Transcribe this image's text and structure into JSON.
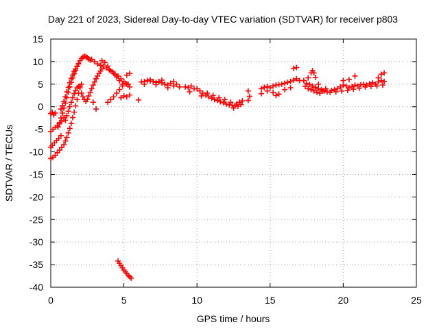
{
  "chart_data": {
    "type": "scatter",
    "title": "Day 221 of 2023, Sidereal Day-to-day VTEC variation (SDTVAR) for receiver p803",
    "xlabel": "GPS time / hours",
    "ylabel": "SDTVAR / TECUs",
    "xlim": [
      0,
      25
    ],
    "ylim": [
      -40,
      15
    ],
    "xticks": [
      0,
      5,
      10,
      15,
      20,
      25
    ],
    "yticks": [
      15,
      10,
      5,
      0,
      -5,
      -10,
      -15,
      -20,
      -25,
      -30,
      -35,
      -40
    ],
    "grid": true,
    "marker": "+",
    "color": "#ff0000",
    "series": [
      {
        "name": "SDTVAR",
        "points": [
          [
            0.0,
            -1.5
          ],
          [
            0.1,
            -1.2
          ],
          [
            0.2,
            -1.8
          ],
          [
            0.3,
            -1.4
          ],
          [
            0.0,
            -5.5
          ],
          [
            0.15,
            -5.0
          ],
          [
            0.3,
            -4.6
          ],
          [
            0.45,
            -4.2
          ],
          [
            0.6,
            -3.8
          ],
          [
            0.75,
            -3.2
          ],
          [
            0.9,
            -2.4
          ],
          [
            0.0,
            -9.0
          ],
          [
            0.1,
            -8.6
          ],
          [
            0.25,
            -8.0
          ],
          [
            0.4,
            -7.5
          ],
          [
            0.55,
            -7.0
          ],
          [
            0.7,
            -6.4
          ],
          [
            0.0,
            -11.5
          ],
          [
            0.15,
            -11.2
          ],
          [
            0.3,
            -10.8
          ],
          [
            0.45,
            -10.2
          ],
          [
            0.6,
            -9.6
          ],
          [
            0.75,
            -9.0
          ],
          [
            0.9,
            -8.4
          ],
          [
            1.0,
            -7.6
          ],
          [
            1.1,
            -6.8
          ],
          [
            1.2,
            -5.8
          ],
          [
            1.3,
            -4.8
          ],
          [
            1.4,
            -3.7
          ],
          [
            1.5,
            -2.4
          ],
          [
            1.6,
            -1.2
          ],
          [
            1.7,
            0.2
          ],
          [
            1.8,
            1.6
          ],
          [
            1.9,
            3.0
          ],
          [
            2.0,
            4.2
          ],
          [
            2.1,
            5.0
          ],
          [
            0.5,
            -4.5
          ],
          [
            0.6,
            -3.5
          ],
          [
            0.7,
            -2.5
          ],
          [
            0.8,
            -1.4
          ],
          [
            0.9,
            -0.3
          ],
          [
            1.0,
            0.8
          ],
          [
            1.1,
            2.0
          ],
          [
            1.2,
            3.2
          ],
          [
            1.3,
            4.4
          ],
          [
            1.4,
            5.4
          ],
          [
            1.5,
            6.4
          ],
          [
            1.6,
            7.3
          ],
          [
            1.7,
            8.1
          ],
          [
            1.8,
            8.9
          ],
          [
            1.9,
            9.6
          ],
          [
            2.0,
            10.2
          ],
          [
            2.1,
            10.7
          ],
          [
            2.2,
            11.0
          ],
          [
            2.3,
            11.2
          ],
          [
            2.4,
            11.1
          ],
          [
            2.5,
            10.9
          ],
          [
            2.6,
            10.6
          ],
          [
            2.7,
            10.3
          ],
          [
            0.7,
            -0.5
          ],
          [
            0.8,
            0.3
          ],
          [
            0.9,
            1.2
          ],
          [
            1.0,
            2.2
          ],
          [
            1.1,
            3.3
          ],
          [
            1.2,
            4.3
          ],
          [
            1.3,
            5.3
          ],
          [
            1.4,
            6.2
          ],
          [
            1.5,
            7.0
          ],
          [
            1.6,
            7.8
          ],
          [
            1.7,
            8.4
          ],
          [
            1.8,
            9.0
          ],
          [
            1.9,
            9.5
          ],
          [
            1.0,
            -3.0
          ],
          [
            1.1,
            -2.0
          ],
          [
            1.2,
            -1.0
          ],
          [
            1.3,
            0.0
          ],
          [
            1.4,
            1.0
          ],
          [
            1.5,
            2.0
          ],
          [
            1.6,
            2.9
          ],
          [
            1.7,
            3.6
          ],
          [
            1.8,
            4.2
          ],
          [
            1.9,
            4.5
          ],
          [
            2.0,
            4.6
          ],
          [
            2.1,
            3.0
          ],
          [
            2.2,
            2.2
          ],
          [
            2.3,
            1.6
          ],
          [
            2.4,
            1.2
          ],
          [
            2.5,
            1.6
          ],
          [
            2.6,
            2.4
          ],
          [
            2.7,
            3.2
          ],
          [
            2.8,
            4.0
          ],
          [
            2.9,
            4.8
          ],
          [
            3.0,
            5.5
          ],
          [
            3.1,
            6.2
          ],
          [
            3.2,
            6.8
          ],
          [
            3.3,
            7.4
          ],
          [
            3.4,
            7.9
          ],
          [
            3.5,
            8.4
          ],
          [
            2.9,
            1.0
          ],
          [
            3.1,
            -0.5
          ],
          [
            2.8,
            10.5
          ],
          [
            3.0,
            10.0
          ],
          [
            3.2,
            9.5
          ],
          [
            3.4,
            9.2
          ],
          [
            3.6,
            9.0
          ],
          [
            3.8,
            8.6
          ],
          [
            4.0,
            8.2
          ],
          [
            4.2,
            7.8
          ],
          [
            4.4,
            7.2
          ],
          [
            4.6,
            6.8
          ],
          [
            4.8,
            6.2
          ],
          [
            5.0,
            5.6
          ],
          [
            5.2,
            5.0
          ],
          [
            5.4,
            4.4
          ],
          [
            3.5,
            10.2
          ],
          [
            3.7,
            9.8
          ],
          [
            3.9,
            9.0
          ],
          [
            4.1,
            8.0
          ],
          [
            4.3,
            7.4
          ],
          [
            4.5,
            6.6
          ],
          [
            4.7,
            5.8
          ],
          [
            4.9,
            5.0
          ],
          [
            3.9,
            1.0
          ],
          [
            4.1,
            1.6
          ],
          [
            4.3,
            2.2
          ],
          [
            4.5,
            3.0
          ],
          [
            4.7,
            3.8
          ],
          [
            4.9,
            4.6
          ],
          [
            5.1,
            5.2
          ],
          [
            5.3,
            5.0
          ],
          [
            4.8,
            2.0
          ],
          [
            5.0,
            2.4
          ],
          [
            5.2,
            2.2
          ],
          [
            5.4,
            2.6
          ],
          [
            5.2,
            7.0
          ],
          [
            5.4,
            7.4
          ],
          [
            6.0,
            1.5
          ],
          [
            6.2,
            5.5
          ],
          [
            6.4,
            5.6
          ],
          [
            6.6,
            5.8
          ],
          [
            6.8,
            5.7
          ],
          [
            7.0,
            5.6
          ],
          [
            7.2,
            5.4
          ],
          [
            7.4,
            5.6
          ],
          [
            7.6,
            5.3
          ],
          [
            7.8,
            5.0
          ],
          [
            8.0,
            4.8
          ],
          [
            8.2,
            5.2
          ],
          [
            8.4,
            4.6
          ],
          [
            8.6,
            5.0
          ],
          [
            8.8,
            4.4
          ],
          [
            6.4,
            5.0
          ],
          [
            6.8,
            6.0
          ],
          [
            7.2,
            4.9
          ],
          [
            7.6,
            5.9
          ],
          [
            8.0,
            4.2
          ],
          [
            8.4,
            5.6
          ],
          [
            9.2,
            4.4
          ],
          [
            9.4,
            4.2
          ],
          [
            9.6,
            4.6
          ],
          [
            9.8,
            4.0
          ],
          [
            9.5,
            3.3
          ],
          [
            10.0,
            4.0
          ],
          [
            10.2,
            3.5
          ],
          [
            10.4,
            3.0
          ],
          [
            10.6,
            2.6
          ],
          [
            10.8,
            2.2
          ],
          [
            11.0,
            1.9
          ],
          [
            11.2,
            1.6
          ],
          [
            11.4,
            1.4
          ],
          [
            11.6,
            1.1
          ],
          [
            11.8,
            0.9
          ],
          [
            12.0,
            0.6
          ],
          [
            12.2,
            0.4
          ],
          [
            12.4,
            0.3
          ],
          [
            12.6,
            0.2
          ],
          [
            12.8,
            0.1
          ],
          [
            13.0,
            0.5
          ],
          [
            10.3,
            2.4
          ],
          [
            10.7,
            3.0
          ],
          [
            11.1,
            2.5
          ],
          [
            11.5,
            2.0
          ],
          [
            11.9,
            1.6
          ],
          [
            12.3,
            1.0
          ],
          [
            12.7,
            0.6
          ],
          [
            12.5,
            -0.3
          ],
          [
            12.9,
            1.0
          ],
          [
            13.1,
            1.3
          ],
          [
            13.5,
            1.4
          ],
          [
            13.6,
            2.3
          ],
          [
            13.5,
            3.5
          ],
          [
            14.4,
            4.0
          ],
          [
            14.6,
            4.3
          ],
          [
            14.8,
            4.5
          ],
          [
            15.0,
            4.2
          ],
          [
            15.2,
            4.6
          ],
          [
            15.4,
            4.8
          ],
          [
            15.6,
            4.9
          ],
          [
            15.8,
            5.0
          ],
          [
            16.0,
            5.2
          ],
          [
            16.2,
            5.4
          ],
          [
            16.4,
            5.6
          ],
          [
            16.6,
            5.9
          ],
          [
            16.8,
            6.2
          ],
          [
            17.0,
            5.8
          ],
          [
            14.4,
            2.9
          ],
          [
            14.8,
            3.5
          ],
          [
            15.2,
            3.2
          ],
          [
            15.4,
            2.5
          ],
          [
            15.6,
            2.8
          ],
          [
            16.0,
            3.8
          ],
          [
            16.4,
            4.2
          ],
          [
            16.6,
            8.5
          ],
          [
            16.8,
            8.7
          ],
          [
            17.3,
            5.8
          ],
          [
            17.5,
            5.2
          ],
          [
            17.7,
            4.9
          ],
          [
            17.9,
            4.6
          ],
          [
            18.1,
            4.3
          ],
          [
            18.3,
            4.0
          ],
          [
            18.5,
            3.8
          ],
          [
            18.7,
            3.5
          ],
          [
            18.9,
            3.3
          ],
          [
            19.1,
            3.2
          ],
          [
            17.4,
            4.5
          ],
          [
            17.6,
            4.0
          ],
          [
            17.8,
            3.8
          ],
          [
            18.0,
            3.5
          ],
          [
            18.2,
            3.2
          ],
          [
            18.4,
            3.0
          ],
          [
            18.6,
            3.5
          ],
          [
            18.8,
            4.0
          ],
          [
            17.6,
            6.4
          ],
          [
            17.8,
            7.5
          ],
          [
            17.9,
            8.0
          ],
          [
            18.0,
            7.5
          ],
          [
            18.1,
            6.5
          ],
          [
            18.3,
            5.0
          ],
          [
            19.2,
            3.6
          ],
          [
            19.4,
            3.8
          ],
          [
            19.6,
            4.0
          ],
          [
            19.8,
            4.4
          ],
          [
            20.0,
            4.8
          ],
          [
            20.2,
            4.6
          ],
          [
            20.4,
            4.2
          ],
          [
            20.6,
            4.5
          ],
          [
            20.8,
            4.8
          ],
          [
            21.0,
            4.6
          ],
          [
            21.2,
            4.9
          ],
          [
            21.4,
            5.0
          ],
          [
            21.6,
            4.8
          ],
          [
            21.8,
            5.1
          ],
          [
            22.0,
            5.3
          ],
          [
            22.2,
            5.0
          ],
          [
            22.4,
            5.5
          ],
          [
            22.6,
            5.8
          ],
          [
            22.8,
            5.6
          ],
          [
            19.5,
            3.3
          ],
          [
            19.9,
            3.5
          ],
          [
            20.3,
            3.6
          ],
          [
            20.7,
            3.9
          ],
          [
            21.1,
            4.1
          ],
          [
            21.5,
            4.4
          ],
          [
            21.9,
            4.5
          ],
          [
            22.3,
            4.6
          ],
          [
            22.7,
            4.8
          ],
          [
            20.0,
            5.8
          ],
          [
            20.4,
            6.0
          ],
          [
            20.8,
            6.8
          ],
          [
            22.4,
            6.4
          ],
          [
            22.6,
            7.2
          ],
          [
            22.8,
            7.5
          ],
          [
            4.6,
            -34.2
          ],
          [
            4.7,
            -34.7
          ],
          [
            4.8,
            -35.2
          ],
          [
            4.9,
            -35.7
          ],
          [
            5.0,
            -36.2
          ],
          [
            5.1,
            -36.6
          ],
          [
            5.2,
            -37.0
          ],
          [
            5.3,
            -37.4
          ],
          [
            5.4,
            -37.7
          ],
          [
            5.5,
            -38.0
          ]
        ]
      }
    ]
  }
}
